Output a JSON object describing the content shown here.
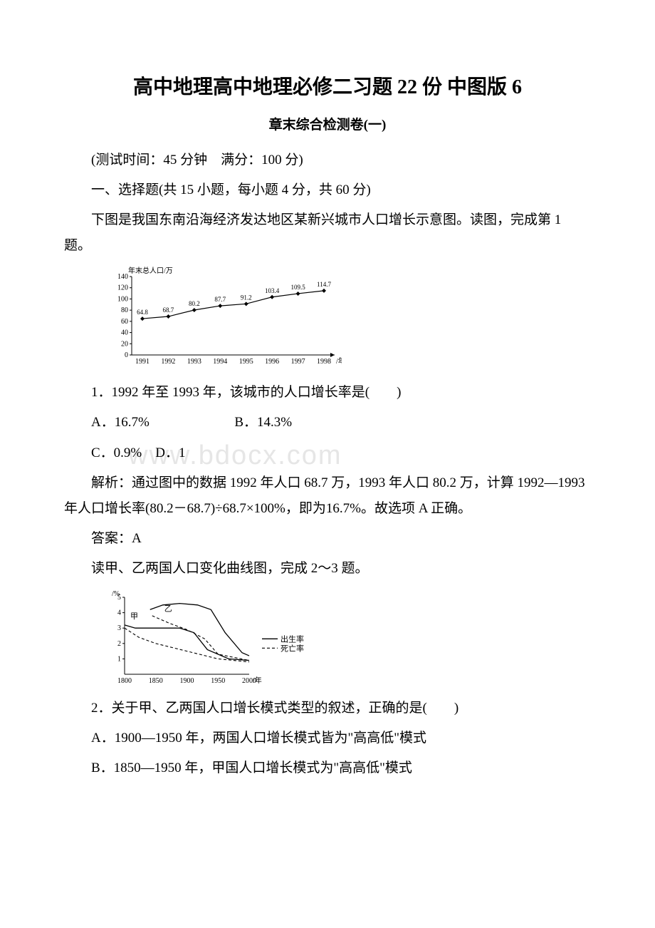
{
  "title": "高中地理高中地理必修二习题 22 份 中图版 6",
  "subtitle": "章末综合检测卷(一)",
  "test_info": "(测试时间：45 分钟　满分：100 分)",
  "section1": "一、选择题(共 15 小题，每小题 4 分，共 60 分)",
  "intro1": "下图是我国东南沿海经济发达地区某新兴城市人口增长示意图。读图，完成第 1 题。",
  "chart1": {
    "ylabel": "年末总人口/万",
    "xlabel": "/年",
    "ylim": [
      0,
      140
    ],
    "ytick_step": 20,
    "yticks": [
      0,
      20,
      40,
      60,
      80,
      100,
      120,
      140
    ],
    "categories": [
      "1991",
      "1992",
      "1993",
      "1994",
      "1995",
      "1996",
      "1997",
      "1998"
    ],
    "values": [
      64.8,
      68.7,
      80.2,
      87.7,
      91.2,
      103.4,
      109.5,
      114.7
    ],
    "line_color": "#000000",
    "marker_color": "#000000",
    "background_color": "#ffffff",
    "label_fontsize": 10
  },
  "q1": "1．1992 年至 1993 年，该城市的人口增长率是(　　)",
  "q1a": "A．16.7%",
  "q1b": "B．14.3%",
  "q1c": "C．0.9%　D．1",
  "exp1": "解析：通过图中的数据 1992 年人口 68.7 万，1993 年人口 80.2 万，计算 1992—1993 年人口增长率(80.2－68.7)÷68.7×100%，即为16.7%。故选项 A 正确。",
  "ans1": "答案：A",
  "intro2": "读甲、乙两国人口变化曲线图，完成 2～3 题。",
  "chart2": {
    "ylabel": "/%",
    "xlabel": "/年",
    "ylim": [
      0,
      5
    ],
    "ytick_step": 1,
    "yticks": [
      1,
      2,
      3,
      4,
      5
    ],
    "categories": [
      "1800",
      "1850",
      "1900",
      "1950",
      "2000"
    ],
    "series": {
      "jia_label": "甲",
      "yi_label": "乙",
      "legend_birth": "出生率",
      "legend_death": "死亡率"
    },
    "line_color": "#000000",
    "label_fontsize": 10
  },
  "q2": "2．关于甲、乙两国人口增长模式类型的叙述，正确的是(　　)",
  "q2a": "A．1900—1950 年，两国人口增长模式皆为\"高高低\"模式",
  "q2b": "B．1850—1950 年，甲国人口增长模式为\"高高低\"模式",
  "watermark": "www.bdocx.com"
}
